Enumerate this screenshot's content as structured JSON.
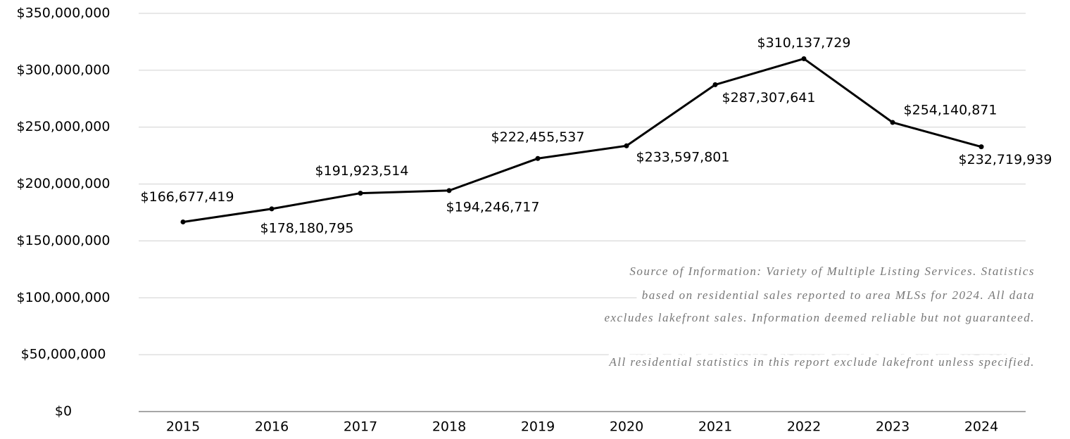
{
  "chart_data": {
    "type": "line",
    "categories": [
      "2015",
      "2016",
      "2017",
      "2018",
      "2019",
      "2020",
      "2021",
      "2022",
      "2023",
      "2024"
    ],
    "values": [
      166677419,
      178180795,
      191923514,
      194246717,
      222455537,
      233597801,
      287307641,
      310137729,
      254140871,
      232719939
    ],
    "value_labels": [
      "$166,677,419",
      "$178,180,795",
      "$191,923,514",
      "$194,246,717",
      "$222,455,537",
      "$233,597,801",
      "$287,307,641",
      "$310,137,729",
      "$254,140,871",
      "$232,719,939"
    ],
    "color": "#000000",
    "ylim": [
      0,
      350000000
    ],
    "yticks": [
      {
        "value": 0,
        "label": "$0"
      },
      {
        "value": 50000000,
        "label": "$50,000,000"
      },
      {
        "value": 100000000,
        "label": "$100,000,000"
      },
      {
        "value": 150000000,
        "label": "$150,000,000"
      },
      {
        "value": 200000000,
        "label": "$200,000,000"
      },
      {
        "value": 250000000,
        "label": "$250,000,000"
      },
      {
        "value": 300000000,
        "label": "$300,000,000"
      },
      {
        "value": 350000000,
        "label": "$350,000,000"
      }
    ],
    "grid": true,
    "annotations": [
      "Source of Information: Variety of Multiple Listing Services. Statistics",
      "based on residential sales reported to area MLSs for 2024. All data",
      "excludes lakefront sales. Information deemed reliable but not guaranteed.",
      "All residential statistics in this report exclude lakefront unless specified."
    ]
  }
}
